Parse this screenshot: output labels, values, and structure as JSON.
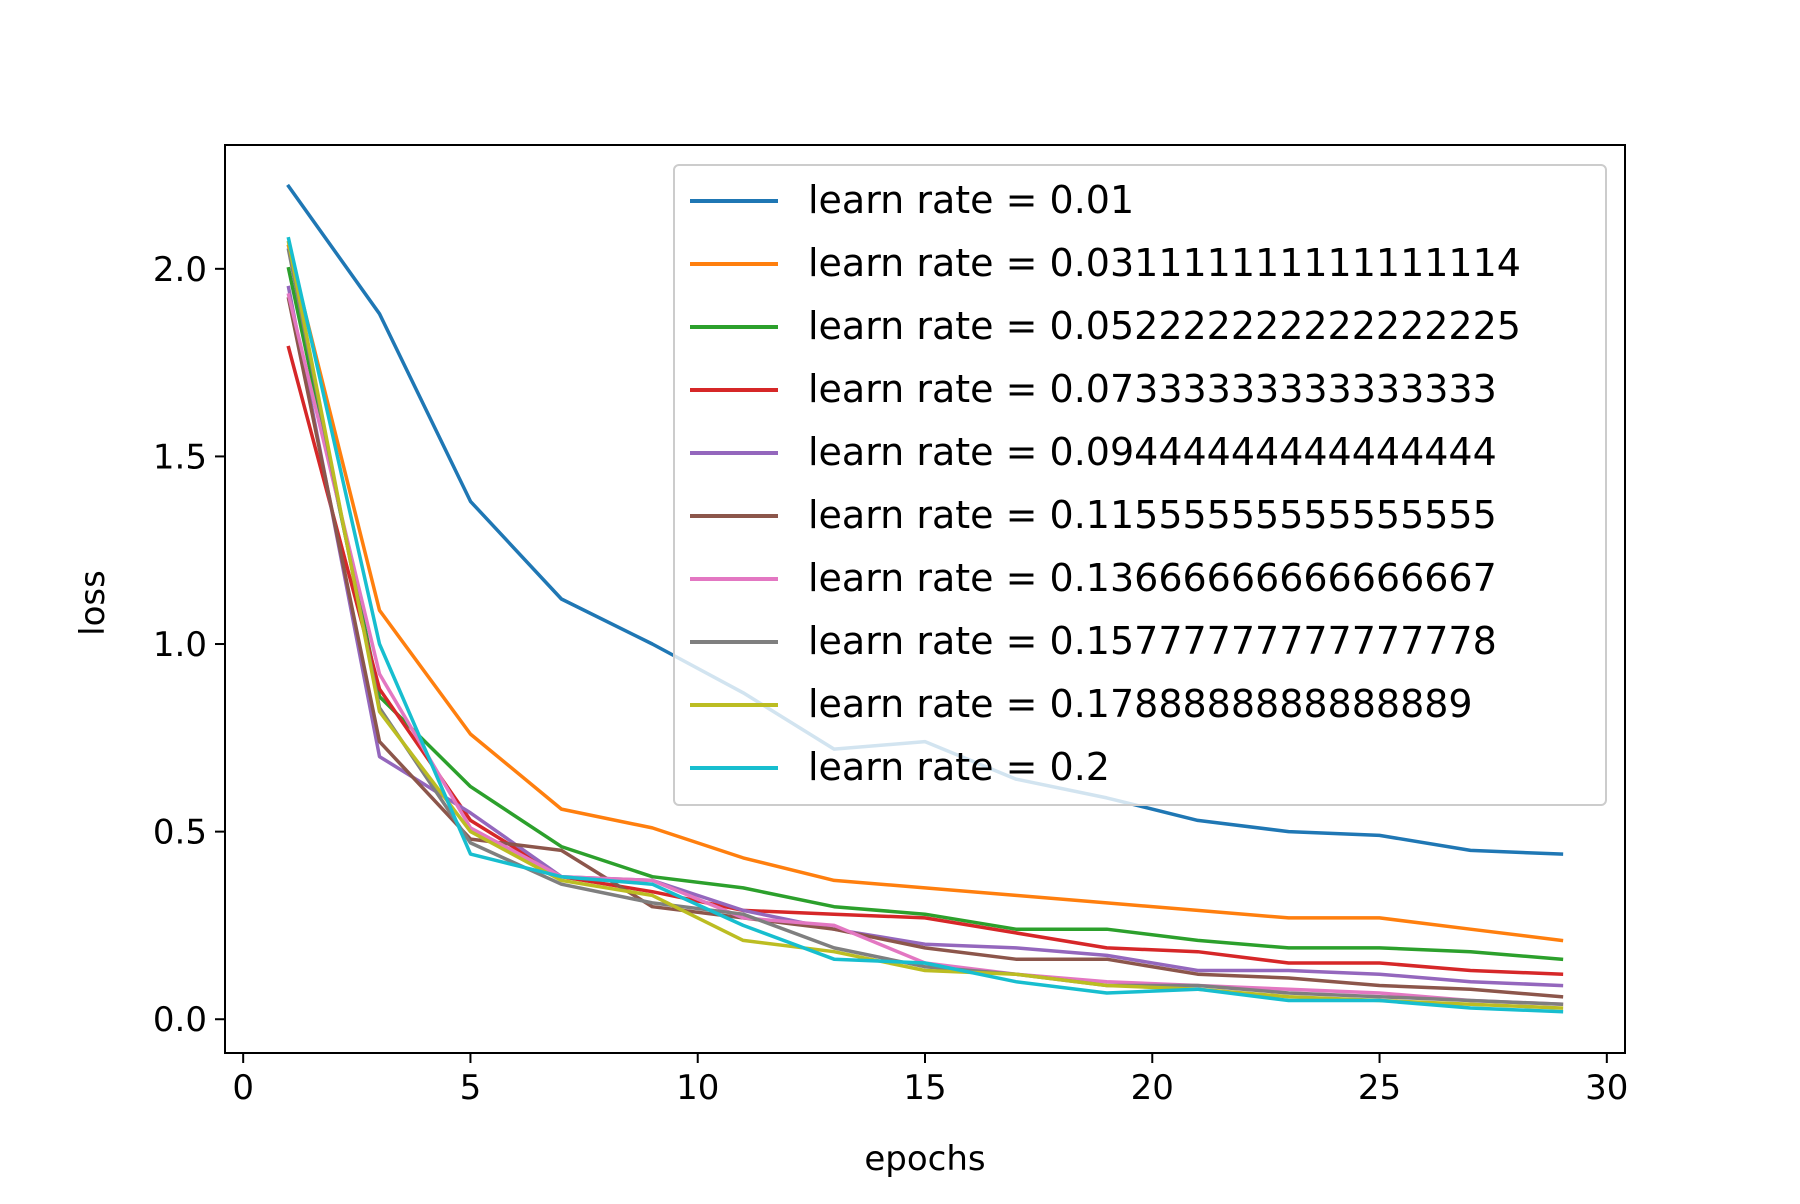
{
  "chart_data": {
    "type": "line",
    "title": "",
    "xlabel": "epochs",
    "ylabel": "loss",
    "xlim": [
      -0.4,
      30.4
    ],
    "ylim": [
      -0.09,
      2.33
    ],
    "xticks": [
      0,
      5,
      10,
      15,
      20,
      25,
      30
    ],
    "xtick_labels": [
      "0",
      "5",
      "10",
      "15",
      "20",
      "25",
      "30"
    ],
    "yticks": [
      0.0,
      0.5,
      1.0,
      1.5,
      2.0
    ],
    "ytick_labels": [
      "0.0",
      "0.5",
      "1.0",
      "1.5",
      "2.0"
    ],
    "grid": false,
    "legend_position": "top-right",
    "x": [
      1,
      3,
      5,
      7,
      9,
      11,
      13,
      15,
      17,
      19,
      21,
      23,
      25,
      27,
      29
    ],
    "series": [
      {
        "name": "learn rate = 0.01",
        "color": "#1f77b4",
        "values": [
          2.22,
          1.88,
          1.38,
          1.12,
          1.0,
          0.87,
          0.72,
          0.74,
          0.64,
          0.59,
          0.53,
          0.5,
          0.49,
          0.45,
          0.44
        ]
      },
      {
        "name": "learn rate = 0.031111111111111114",
        "color": "#ff7f0e",
        "values": [
          2.06,
          1.09,
          0.76,
          0.56,
          0.51,
          0.43,
          0.37,
          0.35,
          0.33,
          0.31,
          0.29,
          0.27,
          0.27,
          0.24,
          0.21
        ]
      },
      {
        "name": "learn rate = 0.052222222222222225",
        "color": "#2ca02c",
        "values": [
          2.0,
          0.86,
          0.62,
          0.46,
          0.38,
          0.35,
          0.3,
          0.28,
          0.24,
          0.24,
          0.21,
          0.19,
          0.19,
          0.18,
          0.16
        ]
      },
      {
        "name": "learn rate = 0.07333333333333333",
        "color": "#d62728",
        "values": [
          1.79,
          0.88,
          0.53,
          0.38,
          0.34,
          0.29,
          0.28,
          0.27,
          0.23,
          0.19,
          0.18,
          0.15,
          0.15,
          0.13,
          0.12
        ]
      },
      {
        "name": "learn rate = 0.09444444444444444",
        "color": "#9467bd",
        "values": [
          1.95,
          0.7,
          0.55,
          0.38,
          0.37,
          0.29,
          0.24,
          0.2,
          0.19,
          0.17,
          0.13,
          0.13,
          0.12,
          0.1,
          0.09
        ]
      },
      {
        "name": "learn rate = 0.11555555555555555",
        "color": "#8c564b",
        "values": [
          1.92,
          0.74,
          0.48,
          0.45,
          0.3,
          0.27,
          0.24,
          0.19,
          0.16,
          0.16,
          0.12,
          0.11,
          0.09,
          0.08,
          0.06
        ]
      },
      {
        "name": "learn rate = 0.13666666666666667",
        "color": "#e377c2",
        "values": [
          1.93,
          0.92,
          0.51,
          0.38,
          0.37,
          0.27,
          0.25,
          0.15,
          0.12,
          0.1,
          0.09,
          0.08,
          0.07,
          0.05,
          0.04
        ]
      },
      {
        "name": "learn rate = 0.15777777777777778",
        "color": "#7f7f7f",
        "values": [
          2.05,
          0.83,
          0.47,
          0.36,
          0.31,
          0.28,
          0.19,
          0.14,
          0.12,
          0.09,
          0.09,
          0.07,
          0.06,
          0.05,
          0.04
        ]
      },
      {
        "name": "learn rate = 0.1788888888888889",
        "color": "#bcbd22",
        "values": [
          2.07,
          0.82,
          0.5,
          0.37,
          0.33,
          0.21,
          0.18,
          0.13,
          0.12,
          0.09,
          0.08,
          0.06,
          0.05,
          0.04,
          0.03
        ]
      },
      {
        "name": "learn rate = 0.2",
        "color": "#17becf",
        "values": [
          2.08,
          1.0,
          0.44,
          0.38,
          0.36,
          0.25,
          0.16,
          0.15,
          0.1,
          0.07,
          0.08,
          0.05,
          0.05,
          0.03,
          0.02
        ]
      }
    ]
  }
}
